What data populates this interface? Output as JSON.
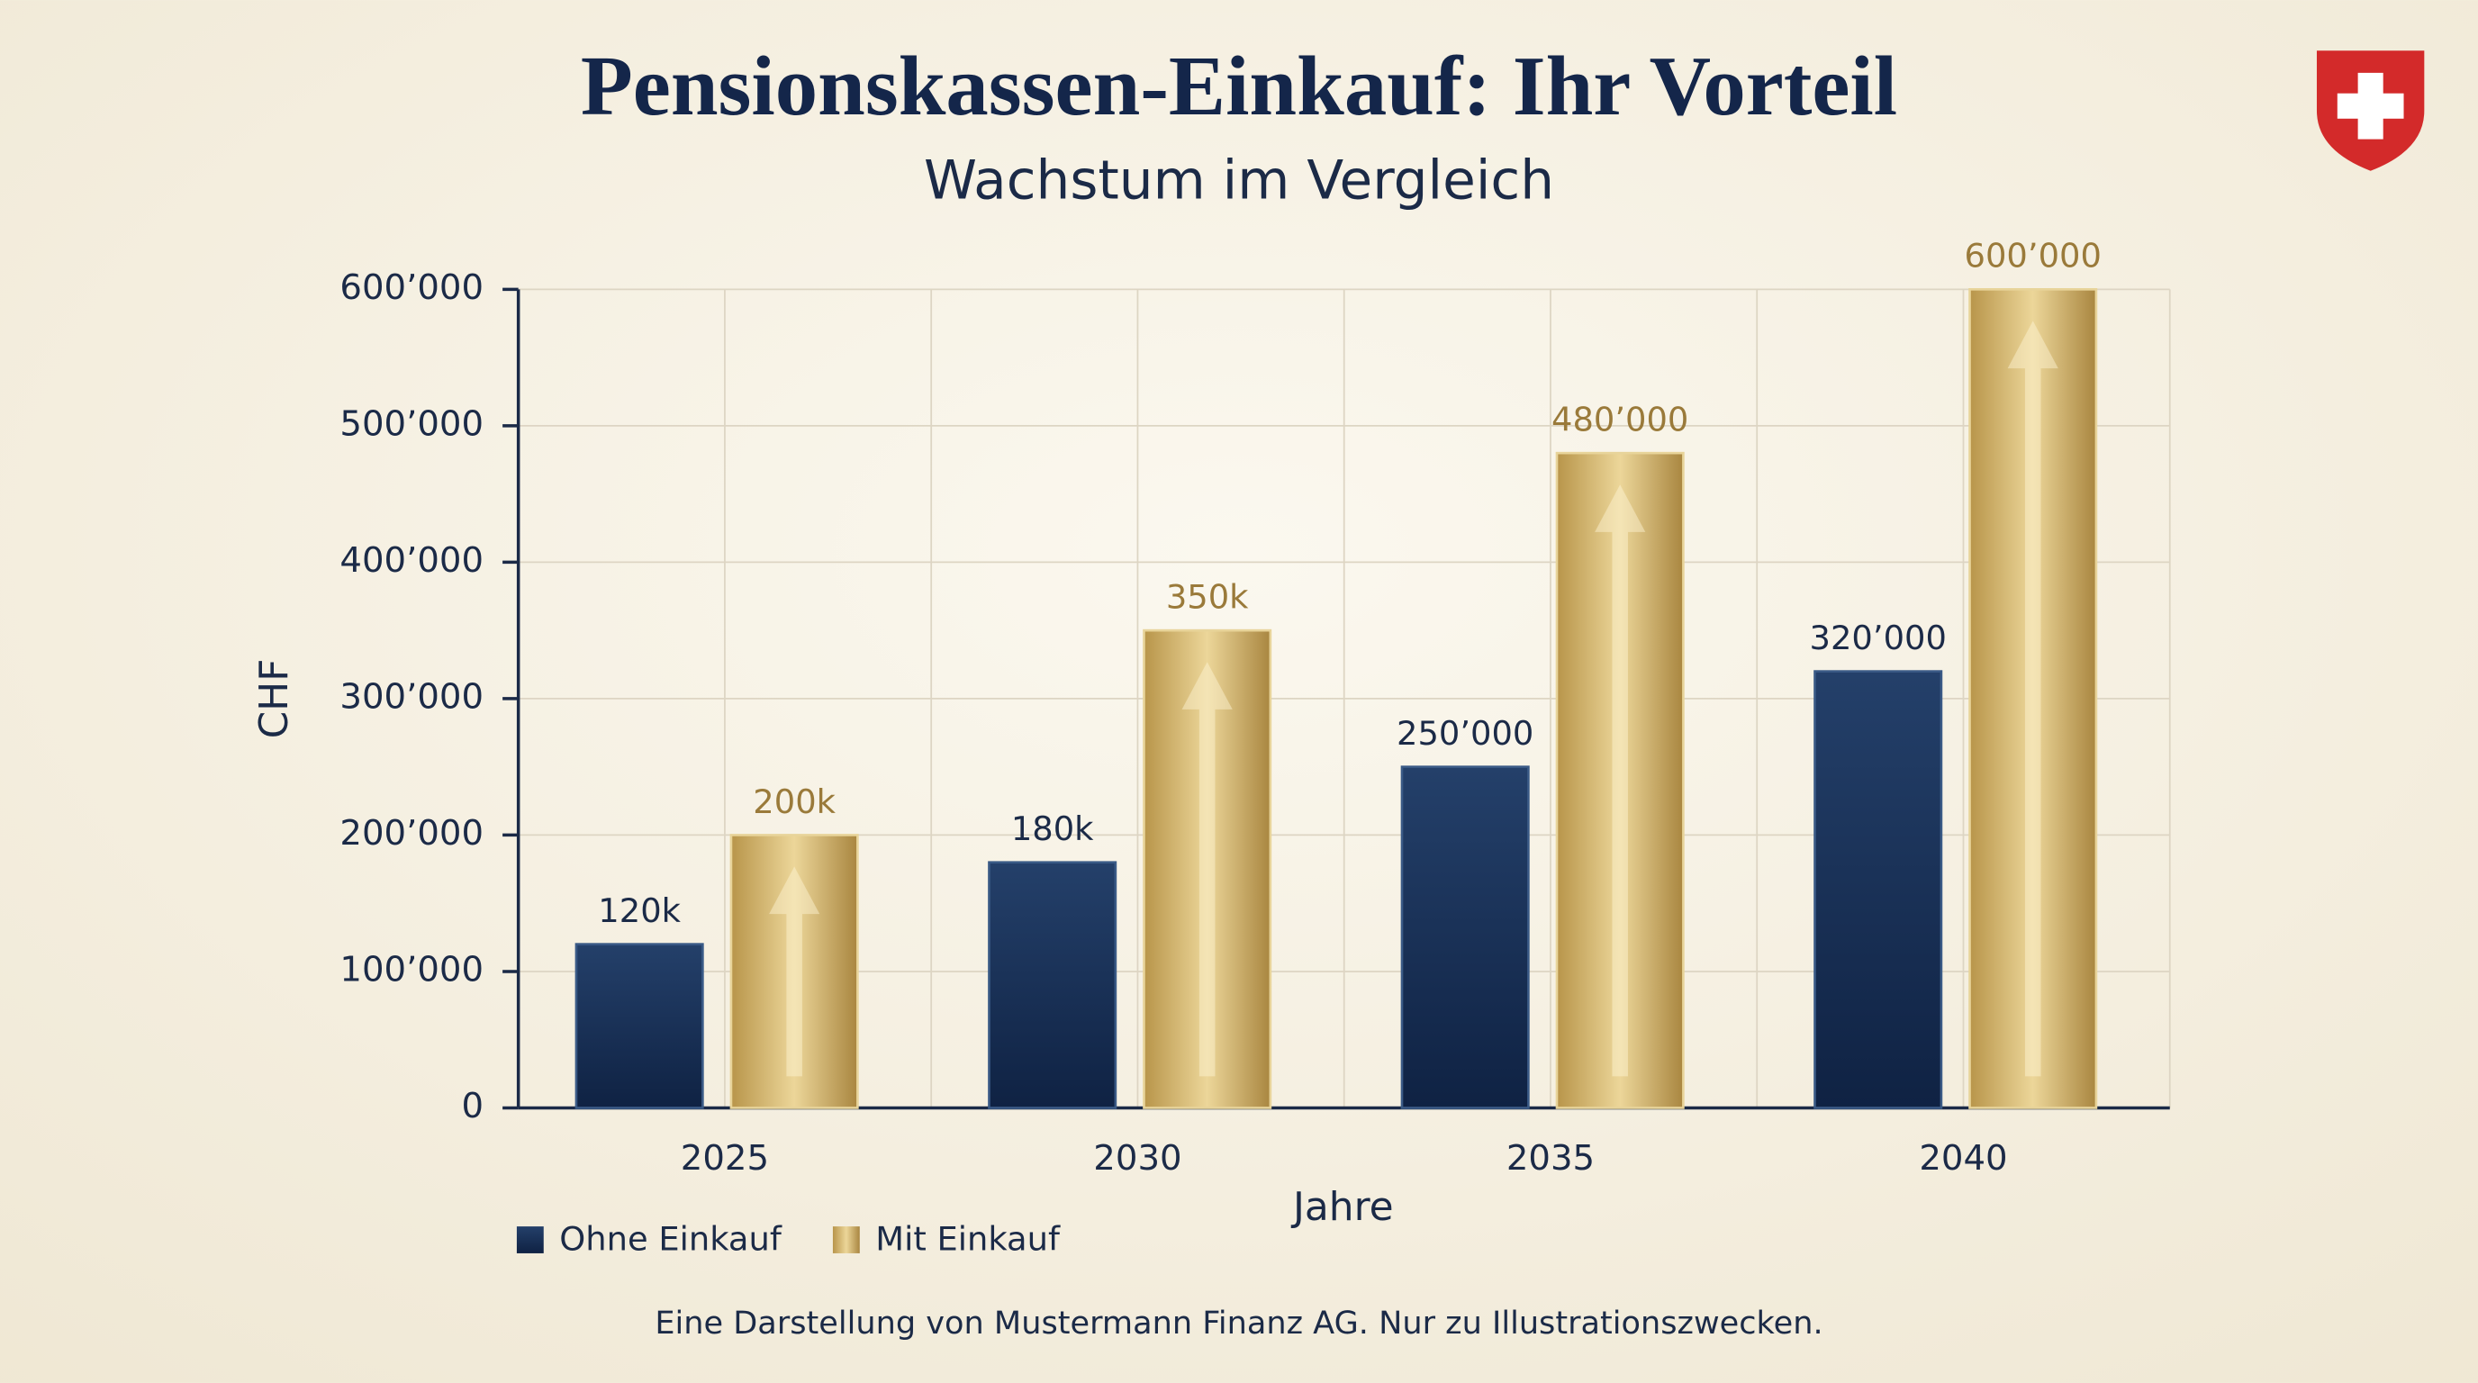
{
  "chart_data": {
    "type": "bar",
    "title": "Pensionskassen-Einkauf: Ihr Vorteil",
    "subtitle": "Wachstum im Vergleich",
    "x_label": "Jahre",
    "y_label": "CHF",
    "categories": [
      "2025",
      "2030",
      "2035",
      "2040"
    ],
    "series": [
      {
        "name": "Ohne Einkauf",
        "color": "#1c3358",
        "values": [
          120000,
          180000,
          250000,
          320000
        ],
        "value_labels": [
          "120k",
          "180k",
          "250’000",
          "320’000"
        ]
      },
      {
        "name": "Mit Einkauf",
        "color": "#c9a95a",
        "values": [
          200000,
          350000,
          480000,
          600000
        ],
        "value_labels": [
          "200k",
          "350k",
          "480’000",
          "600’000"
        ]
      }
    ],
    "ylim": [
      0,
      600000
    ],
    "yticks": [
      0,
      {
        "value": 100000,
        "label": "100’000"
      },
      {
        "value": 200000,
        "label": "200’000"
      },
      {
        "value": 300000,
        "label": "300’000"
      },
      {
        "value": 400000,
        "label": "400’000"
      },
      {
        "value": 500000,
        "label": "500’000"
      },
      {
        "value": 600000,
        "label": "600’000"
      }
    ],
    "grid": true,
    "footnote": "Eine Darstellung von Mustermann Finanz AG. Nur zu Illustrationszwecken."
  }
}
